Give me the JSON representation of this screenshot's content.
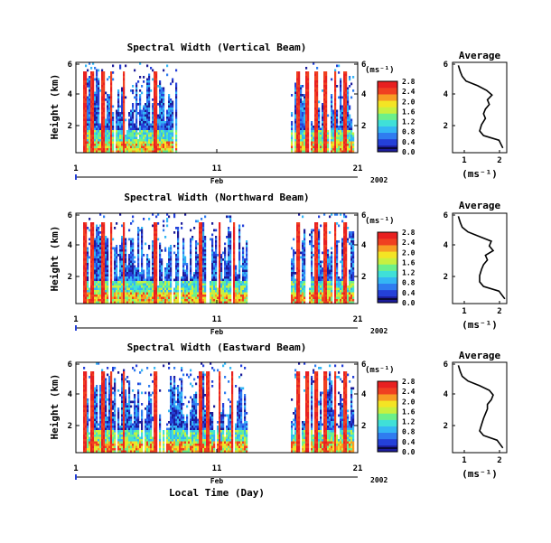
{
  "palette": [
    "#1c1c9a",
    "#2440d8",
    "#2f7cf0",
    "#34b6f4",
    "#3fe0d8",
    "#6cf08a",
    "#c8f040",
    "#f4e424",
    "#f89c24",
    "#f04020",
    "#e82020"
  ],
  "chart_data": [
    {
      "type": "heatmap",
      "title": "Spectral Width (Vertical Beam)",
      "ylabel": "Height (km)",
      "xlabel": "",
      "x_month": "Feb",
      "year": "2002",
      "x_ticks": [
        "1",
        "11",
        "21"
      ],
      "y_ticks": [
        "2",
        "4",
        "6"
      ],
      "xlim_day": [
        1,
        21
      ],
      "ylim_km": [
        0.2,
        6
      ],
      "colorbar_unit": "(ms⁻¹)",
      "colorbar_ticks": [
        "0.0",
        "0.4",
        "0.8",
        "1.2",
        "1.6",
        "2.0",
        "2.4",
        "2.8"
      ],
      "colorbar_range": [
        0,
        2.8
      ],
      "data_gaps_day": [
        [
          8.2,
          16.2
        ]
      ],
      "side_profile": {
        "title": "Average",
        "xlabel": "(ms⁻¹)",
        "x_ticks": [
          "1",
          "2"
        ],
        "y_ticks": [
          "2",
          "4",
          "6"
        ],
        "xlim": [
          0.7,
          2.1
        ],
        "ylim_km": [
          0.2,
          6
        ],
        "heights_km": [
          0.5,
          1.0,
          1.3,
          1.6,
          2.0,
          2.4,
          2.7,
          3.0,
          3.3,
          3.6,
          3.9,
          4.2,
          4.5,
          4.8,
          5.1,
          5.4,
          5.8
        ],
        "values": [
          2.0,
          1.9,
          1.5,
          1.4,
          1.45,
          1.55,
          1.5,
          1.55,
          1.65,
          1.6,
          1.72,
          1.58,
          1.35,
          1.05,
          0.95,
          0.9,
          0.85
        ]
      }
    },
    {
      "type": "heatmap",
      "title": "Spectral Width (Northward Beam)",
      "ylabel": "Height (km)",
      "xlabel": "",
      "x_month": "Feb",
      "year": "2002",
      "x_ticks": [
        "1",
        "11",
        "21"
      ],
      "y_ticks": [
        "2",
        "4",
        "6"
      ],
      "xlim_day": [
        1,
        21
      ],
      "ylim_km": [
        0.2,
        6
      ],
      "colorbar_unit": "(ms⁻¹)",
      "colorbar_ticks": [
        "0.0",
        "0.4",
        "0.8",
        "1.2",
        "1.6",
        "2.0",
        "2.4",
        "2.8"
      ],
      "colorbar_range": [
        0,
        2.8
      ],
      "data_gaps_day": [
        [
          13.2,
          16.2
        ]
      ],
      "side_profile": {
        "title": "Average",
        "xlabel": "(ms⁻¹)",
        "x_ticks": [
          "1",
          "2"
        ],
        "y_ticks": [
          "2",
          "4",
          "6"
        ],
        "xlim": [
          0.7,
          2.1
        ],
        "ylim_km": [
          0.2,
          6
        ],
        "heights_km": [
          0.5,
          1.0,
          1.3,
          1.6,
          2.0,
          2.4,
          2.7,
          3.0,
          3.3,
          3.6,
          3.9,
          4.2,
          4.5,
          4.8,
          5.1,
          5.4,
          5.8
        ],
        "values": [
          2.05,
          1.9,
          1.5,
          1.4,
          1.4,
          1.45,
          1.5,
          1.6,
          1.55,
          1.75,
          1.65,
          1.7,
          1.4,
          1.1,
          0.95,
          0.9,
          0.85
        ]
      }
    },
    {
      "type": "heatmap",
      "title": "Spectral Width (Eastward Beam)",
      "ylabel": "Height (km)",
      "xlabel": "Local Time (Day)",
      "x_month": "Feb",
      "year": "2002",
      "x_ticks": [
        "1",
        "11",
        "21"
      ],
      "y_ticks": [
        "2",
        "4",
        "6"
      ],
      "xlim_day": [
        1,
        21
      ],
      "ylim_km": [
        0.2,
        6
      ],
      "colorbar_unit": "(ms⁻¹)",
      "colorbar_ticks": [
        "0.0",
        "0.4",
        "0.8",
        "1.2",
        "1.6",
        "2.0",
        "2.4",
        "2.8"
      ],
      "colorbar_range": [
        0,
        2.8
      ],
      "data_gaps_day": [
        [
          13.2,
          16.2
        ]
      ],
      "side_profile": {
        "title": "Average",
        "xlabel": "(ms⁻¹)",
        "x_ticks": [
          "1",
          "2"
        ],
        "y_ticks": [
          "2",
          "4",
          "6"
        ],
        "xlim": [
          0.7,
          2.1
        ],
        "ylim_km": [
          0.2,
          6
        ],
        "heights_km": [
          0.5,
          1.0,
          1.3,
          1.6,
          2.0,
          2.4,
          2.7,
          3.0,
          3.3,
          3.6,
          3.9,
          4.2,
          4.5,
          4.8,
          5.1,
          5.4,
          5.8
        ],
        "values": [
          2.0,
          1.85,
          1.5,
          1.4,
          1.45,
          1.5,
          1.55,
          1.6,
          1.6,
          1.7,
          1.75,
          1.65,
          1.4,
          1.1,
          0.95,
          0.9,
          0.85
        ]
      }
    }
  ]
}
